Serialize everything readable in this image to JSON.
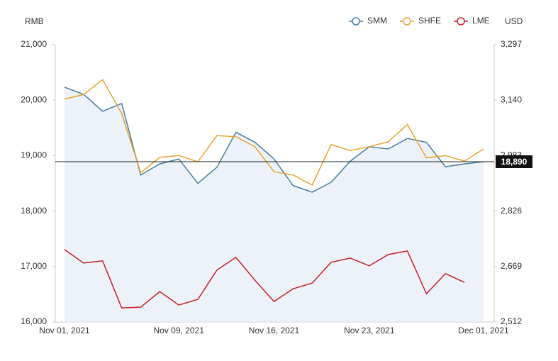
{
  "chart_data": {
    "type": "line",
    "y_label": "RMB",
    "y2_label": "USD",
    "categories": [
      "Nov 01, 2021",
      null,
      null,
      null,
      null,
      null,
      "Nov 09, 2021",
      null,
      null,
      null,
      null,
      "Nov 16, 2021",
      null,
      null,
      null,
      null,
      "Nov 23, 2021",
      null,
      null,
      null,
      null,
      null,
      "Dec 01, 2021"
    ],
    "series": [
      {
        "name": "SMM",
        "color": "#4a7fa0",
        "area": true,
        "values": [
          20233,
          20105,
          19800,
          19940,
          18650,
          18850,
          18940,
          18500,
          18790,
          19420,
          19240,
          18940,
          18460,
          18340,
          18520,
          18900,
          19160,
          19120,
          19310,
          19240,
          18800,
          18850,
          18890
        ]
      },
      {
        "name": "SHFE",
        "color": "#e6a532",
        "values": [
          20020,
          20100,
          20370,
          19760,
          18690,
          18970,
          19000,
          18890,
          19360,
          19340,
          19160,
          18710,
          18650,
          18470,
          19200,
          19090,
          19160,
          19250,
          19560,
          18960,
          19000,
          18900,
          19120
        ]
      },
      {
        "name": "LME",
        "color": "#c8202f",
        "axis": "y2",
        "values": [
          2717,
          2679,
          2685,
          2552,
          2554,
          2598,
          2560,
          2576,
          2659,
          2695,
          2630,
          2570,
          2606,
          2622,
          2681,
          2693,
          2671,
          2703,
          2713,
          2592,
          2649,
          2624,
          null
        ]
      }
    ],
    "reference_line": {
      "value": 18890,
      "label": "18,890"
    },
    "ylim": [
      16000,
      21000
    ],
    "yticks": [
      {
        "value": 16000,
        "label": "16,000"
      },
      {
        "value": 17000,
        "label": "17,000"
      },
      {
        "value": 18000,
        "label": "18,000"
      },
      {
        "value": 19000,
        "label": "19,000"
      },
      {
        "value": 20000,
        "label": "20,000"
      },
      {
        "value": 21000,
        "label": "21,000"
      }
    ],
    "y2lim": [
      2512,
      3297
    ],
    "y2ticks": [
      {
        "value": 2512,
        "label": "2,512"
      },
      {
        "value": 2669,
        "label": "2,669"
      },
      {
        "value": 2826,
        "label": "2,826"
      },
      {
        "value": 2983,
        "label": "2,983"
      },
      {
        "value": 3140,
        "label": "3,140"
      },
      {
        "value": 3297,
        "label": "3,297"
      }
    ]
  }
}
